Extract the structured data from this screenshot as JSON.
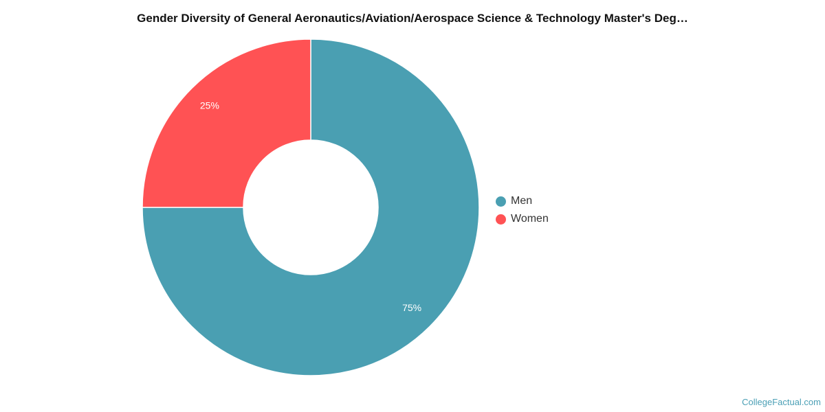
{
  "chart_data": {
    "type": "pie",
    "donut": true,
    "title": "Gender Diversity of General Aeronautics/Aviation/Aerospace Science & Technology Master's Deg…",
    "slices": [
      {
        "label": "Men",
        "value": 75,
        "display": "75%",
        "color": "#4a9fb2"
      },
      {
        "label": "Women",
        "value": 25,
        "display": "25%",
        "color": "#ff5254"
      }
    ],
    "legend_position": "right"
  },
  "legend": {
    "items": [
      {
        "label": "Men",
        "color": "#4a9fb2"
      },
      {
        "label": "Women",
        "color": "#ff5254"
      }
    ]
  },
  "source": "CollegeFactual.com"
}
